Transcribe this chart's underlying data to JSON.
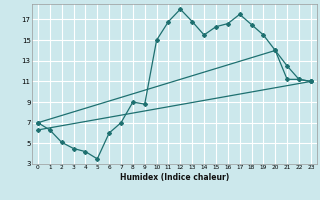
{
  "xlabel": "Humidex (Indice chaleur)",
  "background_color": "#cce8ec",
  "grid_color": "#ffffff",
  "line_color": "#1e7070",
  "xlim": [
    -0.5,
    23.5
  ],
  "ylim": [
    3,
    18.5
  ],
  "xtick_labels": [
    "0",
    "1",
    "2",
    "3",
    "4",
    "5",
    "6",
    "7",
    "8",
    "9",
    "10",
    "11",
    "12",
    "13",
    "14",
    "15",
    "16",
    "17",
    "18",
    "19",
    "20",
    "21",
    "22",
    "23"
  ],
  "yticks": [
    3,
    5,
    7,
    9,
    11,
    13,
    15,
    17
  ],
  "series1_x": [
    0,
    1,
    2,
    3,
    4,
    5,
    6,
    7,
    8,
    9,
    10,
    11,
    12,
    13,
    14,
    15,
    16,
    17,
    18,
    19,
    20,
    21,
    22,
    23
  ],
  "series1_y": [
    7.0,
    6.3,
    5.1,
    4.5,
    4.2,
    3.5,
    6.0,
    7.0,
    9.0,
    8.8,
    15.0,
    16.8,
    18.0,
    16.8,
    15.5,
    16.3,
    16.6,
    17.5,
    16.5,
    15.5,
    14.0,
    11.2,
    11.2,
    11.0
  ],
  "series2_x": [
    0,
    20,
    21,
    22,
    23
  ],
  "series2_y": [
    7.0,
    14.0,
    12.5,
    11.2,
    11.0
  ],
  "series3_x": [
    0,
    23
  ],
  "series3_y": [
    6.3,
    11.0
  ]
}
